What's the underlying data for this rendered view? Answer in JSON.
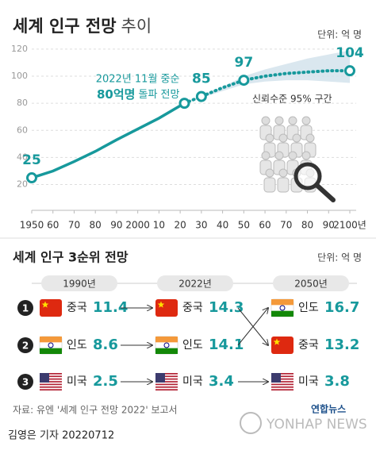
{
  "chart_data": {
    "type": "line",
    "title": "세계 인구 전망",
    "title_suffix": "추이",
    "unit": "단위: 억 명",
    "xlim": [
      1950,
      2100
    ],
    "xticks": [
      1950,
      {
        "value": 1960,
        "label": "60"
      },
      {
        "value": 1970,
        "label": "70"
      },
      {
        "value": 1980,
        "label": "80"
      },
      {
        "value": 1990,
        "label": "90"
      },
      2000,
      {
        "value": 2010,
        "label": "10"
      },
      {
        "value": 2020,
        "label": "20"
      },
      {
        "value": 2030,
        "label": "30"
      },
      {
        "value": 2040,
        "label": "40"
      },
      {
        "value": 2050,
        "label": "50"
      },
      {
        "value": 2060,
        "label": "60"
      },
      {
        "value": 2070,
        "label": "70"
      },
      {
        "value": 2080,
        "label": "80"
      },
      {
        "value": 2090,
        "label": "90"
      },
      {
        "value": 2100,
        "label": "2100년"
      }
    ],
    "ylim": [
      1,
      124
    ],
    "yticks": [
      20,
      40,
      60,
      80,
      100,
      120
    ],
    "grid": true,
    "series": [
      {
        "color": "#17999c",
        "style": "solid",
        "x": [
          1950,
          1960,
          1970,
          1980,
          1990,
          2000,
          2010,
          2022
        ],
        "values": [
          25,
          30,
          37,
          44.5,
          53,
          61,
          69,
          80
        ],
        "dots": [
          0,
          7
        ],
        "labeled": [
          0
        ]
      },
      {
        "color": "#17999c",
        "style": "dotted",
        "x": [
          2022,
          2030,
          2040,
          2050,
          2060,
          2070,
          2080,
          2090,
          2100
        ],
        "values": [
          80,
          85,
          91.5,
          97,
          100,
          102,
          103,
          104,
          104
        ],
        "dots": [
          1,
          3,
          8
        ],
        "labeled": [
          1,
          3,
          8
        ]
      }
    ],
    "band": {
      "color": "#d4e3ec",
      "label": "신뢰수준 95% 구간",
      "x": [
        2022,
        2030,
        2040,
        2050,
        2060,
        2070,
        2080,
        2090,
        2100
      ],
      "lower": [
        80,
        84,
        89,
        94,
        96,
        97,
        97,
        96,
        95
      ],
      "upper": [
        80,
        86,
        92,
        100,
        105,
        109,
        113,
        116,
        119
      ]
    },
    "annotation": {
      "x": 2022,
      "text": "2022년 11월 중순",
      "highlight": "80억명",
      "text2": "돌파 전망"
    }
  },
  "ranking": {
    "title": "세계 인구 3순위 전망",
    "unit": "단위: 억 명",
    "ranks": [
      1,
      2,
      3
    ],
    "columns": [
      {
        "year": "1990년",
        "rows": [
          {
            "country": "중국",
            "value": 11.4
          },
          {
            "country": "인도",
            "value": 8.6
          },
          {
            "country": "미국",
            "value": 2.5
          }
        ]
      },
      {
        "year": "2022년",
        "rows": [
          {
            "country": "중국",
            "value": 14.3
          },
          {
            "country": "인도",
            "value": 14.1
          },
          {
            "country": "미국",
            "value": 3.4
          }
        ]
      },
      {
        "year": "2050년",
        "rows": [
          {
            "country": "인도",
            "value": 16.7
          },
          {
            "country": "중국",
            "value": 13.2
          },
          {
            "country": "미국",
            "value": 3.8
          }
        ]
      }
    ]
  },
  "source": "자료: 유엔 '세계 인구 전망 2022' 보고서",
  "byline": "김영은 기자 20220712",
  "watermark": {
    "logo": "연합뉴스",
    "en": "YONHAP NEWS"
  }
}
